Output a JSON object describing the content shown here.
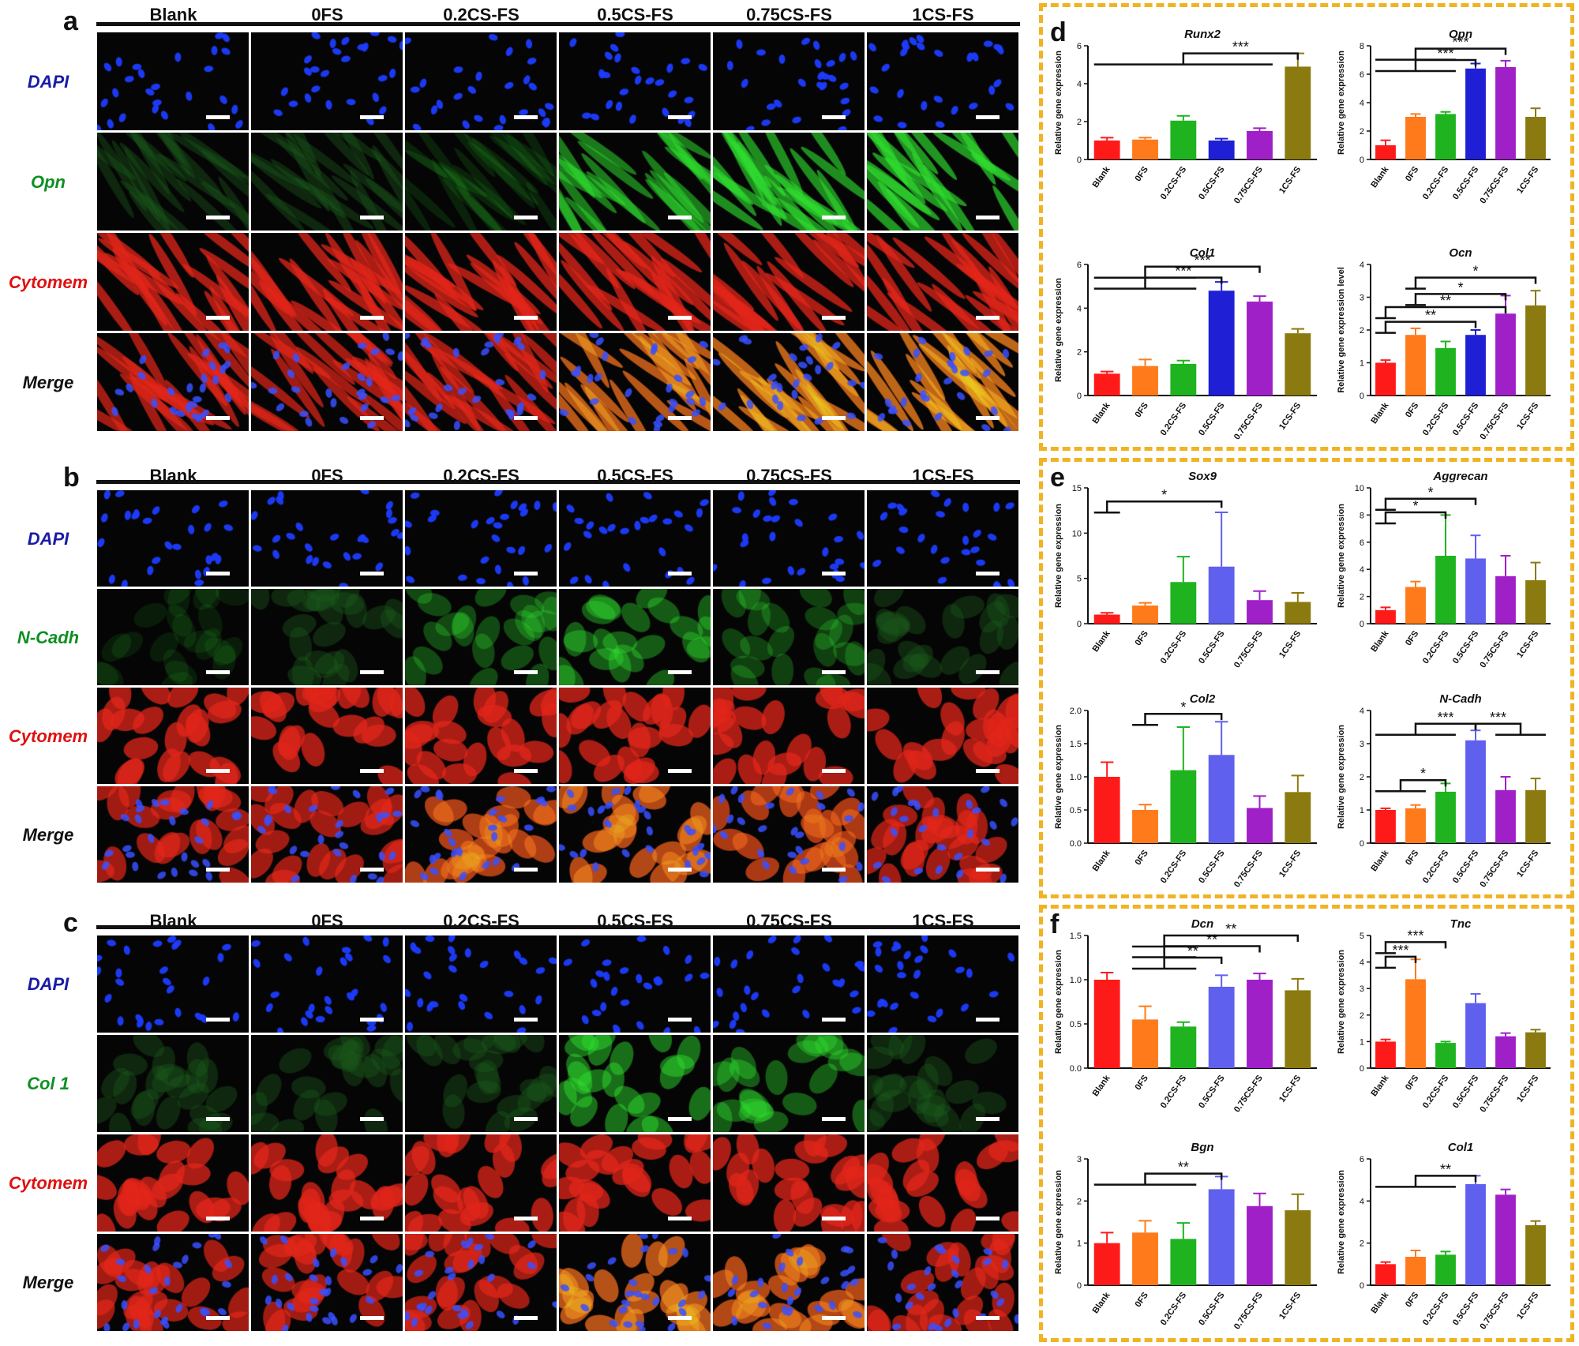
{
  "panels": {
    "a": {
      "letter": "a",
      "columns": [
        "Blank",
        "0FS",
        "0.2CS-FS",
        "0.5CS-FS",
        "0.75CS-FS",
        "1CS-FS"
      ],
      "rows": [
        {
          "label": "DAPI",
          "color": "#1a1aa6",
          "type": "dapi"
        },
        {
          "label": "Opn",
          "color": "#0f8f22",
          "type": "green"
        },
        {
          "label": "Cytomem",
          "color": "#e01010",
          "type": "red"
        },
        {
          "label": "Merge",
          "color": "#111111",
          "type": "merge"
        }
      ],
      "green_levels": [
        0.05,
        0.08,
        0.15,
        0.6,
        0.7,
        0.75
      ]
    },
    "b": {
      "letter": "b",
      "columns": [
        "Blank",
        "0FS",
        "0.2CS-FS",
        "0.5CS-FS",
        "0.75CS-FS",
        "1CS-FS"
      ],
      "rows": [
        {
          "label": "DAPI",
          "color": "#1a1aa6",
          "type": "dapi"
        },
        {
          "label": "N-Cadh",
          "color": "#0f8f22",
          "type": "green"
        },
        {
          "label": "Cytomem",
          "color": "#e01010",
          "type": "red"
        },
        {
          "label": "Merge",
          "color": "#111111",
          "type": "merge"
        }
      ],
      "green_levels": [
        0.12,
        0.1,
        0.35,
        0.45,
        0.3,
        0.08
      ]
    },
    "c": {
      "letter": "c",
      "columns": [
        "Blank",
        "0FS",
        "0.2CS-FS",
        "0.5CS-FS",
        "0.75CS-FS",
        "1CS-FS"
      ],
      "rows": [
        {
          "label": "DAPI",
          "color": "#1a1aa6",
          "type": "dapi"
        },
        {
          "label": "Col 1",
          "color": "#0f8f22",
          "type": "green"
        },
        {
          "label": "Cytomem",
          "color": "#e01010",
          "type": "red"
        },
        {
          "label": "Merge",
          "color": "#111111",
          "type": "merge"
        }
      ],
      "green_levels": [
        0.05,
        0.05,
        0.08,
        0.55,
        0.45,
        0.08
      ]
    },
    "d": {
      "letter": "d"
    },
    "e": {
      "letter": "e"
    },
    "f": {
      "letter": "f"
    }
  },
  "bar_colors": [
    "#ff1a1a",
    "#ff7a1a",
    "#1fb41f",
    "#1f1fd6",
    "#a020c8",
    "#8a7a10"
  ],
  "bar_colors_light": [
    "#ff1a1a",
    "#ff7a1a",
    "#1fb41f",
    "#6060ee",
    "#a020c8",
    "#8a7a10"
  ],
  "chart_data": [
    {
      "type": "bar",
      "panel": "d",
      "title": "Runx2",
      "ylabel": "Relative gene expression",
      "categories": [
        "Blank",
        "0FS",
        "0.2CS-FS",
        "0.5CS-FS",
        "0.75CS-FS",
        "1CS-FS"
      ],
      "values": [
        1.0,
        1.05,
        2.05,
        1.0,
        1.5,
        4.9
      ],
      "errors": [
        0.15,
        0.1,
        0.25,
        0.1,
        0.15,
        0.7
      ],
      "ylim": [
        0,
        6
      ],
      "yticks": [
        0,
        2,
        4,
        6
      ],
      "ytick_labels": [
        "0",
        "2",
        "4",
        "6"
      ],
      "sig": [
        "***"
      ]
    },
    {
      "type": "bar",
      "panel": "d",
      "title": "Opn",
      "ylabel": "Relative gene expression",
      "categories": [
        "Blank",
        "0FS",
        "0.2CS-FS",
        "0.5CS-FS",
        "0.75CS-FS",
        "1CS-FS"
      ],
      "values": [
        1.0,
        3.0,
        3.2,
        6.4,
        6.5,
        3.0
      ],
      "errors": [
        0.35,
        0.2,
        0.15,
        0.35,
        0.45,
        0.6
      ],
      "ylim": [
        0,
        8
      ],
      "yticks": [
        0,
        2,
        4,
        6,
        8
      ],
      "ytick_labels": [
        "0",
        "2",
        "4",
        "6",
        "8"
      ],
      "sig": [
        "***",
        "***"
      ]
    },
    {
      "type": "bar",
      "panel": "d",
      "title": "Col1",
      "ylabel": "Relative gene expression",
      "categories": [
        "Blank",
        "0FS",
        "0.2CS-FS",
        "0.5CS-FS",
        "0.75CS-FS",
        "1CS-FS"
      ],
      "values": [
        1.0,
        1.35,
        1.45,
        4.8,
        4.3,
        2.85
      ],
      "errors": [
        0.1,
        0.3,
        0.15,
        0.4,
        0.25,
        0.2
      ],
      "ylim": [
        0,
        6
      ],
      "yticks": [
        0,
        2,
        4,
        6
      ],
      "ytick_labels": [
        "0",
        "2",
        "4",
        "6"
      ],
      "sig": [
        "***",
        "***"
      ]
    },
    {
      "type": "bar",
      "panel": "d",
      "title": "Ocn",
      "ylabel": "Relative gene expression level",
      "categories": [
        "Blank",
        "0FS",
        "0.2CS-FS",
        "0.5CS-FS",
        "0.75CS-FS",
        "1CS-FS"
      ],
      "values": [
        1.0,
        1.85,
        1.45,
        1.85,
        2.5,
        2.75
      ],
      "errors": [
        0.08,
        0.2,
        0.2,
        0.15,
        0.55,
        0.45
      ],
      "ylim": [
        0,
        4
      ],
      "yticks": [
        0,
        1,
        2,
        3,
        4
      ],
      "ytick_labels": [
        "0",
        "1",
        "2",
        "3",
        "4"
      ],
      "sig": [
        "**",
        "*",
        "**"
      ]
    },
    {
      "type": "bar",
      "panel": "e",
      "title": "Sox9",
      "ylabel": "Relative gene expression",
      "categories": [
        "Blank",
        "0FS",
        "0.2CS-FS",
        "0.5CS-FS",
        "0.75CS-FS",
        "1CS-FS"
      ],
      "values": [
        1.0,
        2.0,
        4.6,
        6.3,
        2.6,
        2.4
      ],
      "errors": [
        0.2,
        0.3,
        2.8,
        6.0,
        1.0,
        1.0
      ],
      "ylim": [
        0,
        15
      ],
      "yticks": [
        0,
        5,
        10,
        15
      ],
      "ytick_labels": [
        "0",
        "5",
        "10",
        "15"
      ],
      "sig": [
        "*"
      ]
    },
    {
      "type": "bar",
      "panel": "e",
      "title": "Aggrecan",
      "ylabel": "Relative gene expression",
      "categories": [
        "Blank",
        "0FS",
        "0.2CS-FS",
        "0.5CS-FS",
        "0.75CS-FS",
        "1CS-FS"
      ],
      "values": [
        1.0,
        2.7,
        5.0,
        4.8,
        3.5,
        3.2
      ],
      "errors": [
        0.2,
        0.4,
        3.0,
        1.7,
        1.5,
        1.3
      ],
      "ylim": [
        0,
        10
      ],
      "yticks": [
        0,
        2,
        4,
        6,
        8,
        10
      ],
      "ytick_labels": [
        "0",
        "2",
        "4",
        "6",
        "8",
        "10"
      ],
      "sig": [
        "*",
        "*"
      ]
    },
    {
      "type": "bar",
      "panel": "e",
      "title": "Col2",
      "ylabel": "Relative gene expression",
      "categories": [
        "Blank",
        "0FS",
        "0.2CS-FS",
        "0.5CS-FS",
        "0.75CS-FS",
        "1CS-FS"
      ],
      "values": [
        1.0,
        0.5,
        1.1,
        1.33,
        0.53,
        0.77
      ],
      "errors": [
        0.22,
        0.08,
        0.65,
        0.5,
        0.18,
        0.25
      ],
      "ylim": [
        0,
        2.0
      ],
      "yticks": [
        0,
        0.5,
        1.0,
        1.5,
        2.0
      ],
      "ytick_labels": [
        "0.0",
        "0.5",
        "1.0",
        "1.5",
        "2.0"
      ],
      "sig": [
        "*"
      ]
    },
    {
      "type": "bar",
      "panel": "e",
      "title": "N-Cadh",
      "ylabel": "Relative gene expression",
      "categories": [
        "Blank",
        "0FS",
        "0.2CS-FS",
        "0.5CS-FS",
        "0.75CS-FS",
        "1CS-FS"
      ],
      "values": [
        1.0,
        1.05,
        1.55,
        3.1,
        1.6,
        1.6
      ],
      "errors": [
        0.05,
        0.1,
        0.25,
        0.3,
        0.4,
        0.35
      ],
      "ylim": [
        0,
        4
      ],
      "yticks": [
        0,
        1,
        2,
        3,
        4
      ],
      "ytick_labels": [
        "0",
        "1",
        "2",
        "3",
        "4"
      ],
      "sig": [
        "*",
        "***",
        "***"
      ]
    },
    {
      "type": "bar",
      "panel": "f",
      "title": "Dcn",
      "ylabel": "Relative gene expression",
      "categories": [
        "Blank",
        "0FS",
        "0.2CS-FS",
        "0.5CS-FS",
        "0.75CS-FS",
        "1CS-FS"
      ],
      "values": [
        1.0,
        0.55,
        0.47,
        0.92,
        1.0,
        0.88
      ],
      "errors": [
        0.08,
        0.15,
        0.05,
        0.13,
        0.07,
        0.13
      ],
      "ylim": [
        0,
        1.5
      ],
      "yticks": [
        0,
        0.5,
        1.0,
        1.5
      ],
      "ytick_labels": [
        "0.0",
        "0.5",
        "1.0",
        "1.5"
      ],
      "sig": [
        "**",
        "**",
        "**"
      ]
    },
    {
      "type": "bar",
      "panel": "f",
      "title": "Tnc",
      "ylabel": "Relative gene expression",
      "categories": [
        "Blank",
        "0FS",
        "0.2CS-FS",
        "0.5CS-FS",
        "0.75CS-FS",
        "1CS-FS"
      ],
      "values": [
        1.0,
        3.35,
        0.95,
        2.45,
        1.2,
        1.35
      ],
      "errors": [
        0.08,
        0.75,
        0.05,
        0.35,
        0.12,
        0.1
      ],
      "ylim": [
        0,
        5
      ],
      "yticks": [
        0,
        1,
        2,
        3,
        4,
        5
      ],
      "ytick_labels": [
        "0",
        "1",
        "2",
        "3",
        "4",
        "5"
      ],
      "sig": [
        "***",
        "***"
      ]
    },
    {
      "type": "bar",
      "panel": "f",
      "title": "Bgn",
      "ylabel": "Relative gene expression",
      "categories": [
        "Blank",
        "0FS",
        "0.2CS-FS",
        "0.5CS-FS",
        "0.75CS-FS",
        "1CS-FS"
      ],
      "values": [
        1.0,
        1.25,
        1.1,
        2.28,
        1.88,
        1.78
      ],
      "errors": [
        0.25,
        0.28,
        0.38,
        0.3,
        0.3,
        0.38
      ],
      "ylim": [
        0,
        3
      ],
      "yticks": [
        0,
        1,
        2,
        3
      ],
      "ytick_labels": [
        "0",
        "1",
        "2",
        "3"
      ],
      "sig": [
        "**"
      ]
    },
    {
      "type": "bar",
      "panel": "f",
      "title": "Col1",
      "ylabel": "Relative gene expression",
      "categories": [
        "Blank",
        "0FS",
        "0.2CS-FS",
        "0.5CS-FS",
        "0.75CS-FS",
        "1CS-FS"
      ],
      "values": [
        1.0,
        1.35,
        1.45,
        4.8,
        4.3,
        2.85
      ],
      "errors": [
        0.1,
        0.3,
        0.15,
        0.4,
        0.25,
        0.2
      ],
      "ylim": [
        0,
        6
      ],
      "yticks": [
        0,
        2,
        4,
        6
      ],
      "ytick_labels": [
        "0",
        "2",
        "4",
        "6"
      ],
      "sig": [
        "**"
      ]
    }
  ]
}
